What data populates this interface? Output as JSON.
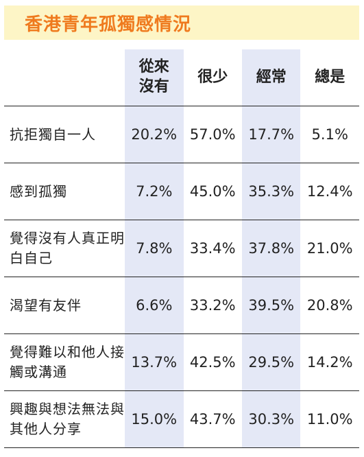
{
  "title": "香港青年孤獨感情況",
  "table": {
    "headers": [
      "從來\n沒有",
      "很少",
      "經常",
      "總是"
    ],
    "rows": [
      {
        "label": "抗拒獨自一人",
        "values": [
          "20.2%",
          "57.0%",
          "17.7%",
          "5.1%"
        ]
      },
      {
        "label": "感到孤獨",
        "values": [
          "7.2%",
          "45.0%",
          "35.3%",
          "12.4%"
        ]
      },
      {
        "label": "覺得沒有人真正明白自己",
        "values": [
          "7.8%",
          "33.4%",
          "37.8%",
          "21.0%"
        ]
      },
      {
        "label": "渴望有友伴",
        "values": [
          "6.6%",
          "33.2%",
          "39.5%",
          "20.8%"
        ]
      },
      {
        "label": "覺得難以和他人接觸或溝通",
        "values": [
          "13.7%",
          "42.5%",
          "29.5%",
          "14.2%"
        ]
      },
      {
        "label": "興趣與想法無法與其他人分享",
        "values": [
          "15.0%",
          "43.7%",
          "30.3%",
          "11.0%"
        ]
      }
    ]
  },
  "colors": {
    "title_text": "#ef7a1e",
    "title_background": "#fdf5c6",
    "column_shade": "#e4e8f6"
  }
}
